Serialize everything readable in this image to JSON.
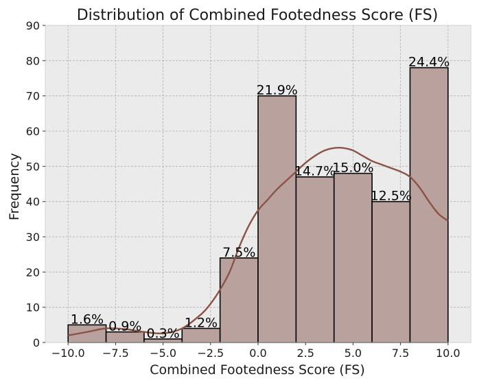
{
  "chart_data": {
    "type": "bar",
    "title": "Distribution of Combined Footedness Score (FS)",
    "xlabel": "Combined Footedness Score (FS)",
    "ylabel": "Frequency",
    "xlim": [
      -11.2,
      11.2
    ],
    "ylim": [
      0,
      90
    ],
    "xticks": [
      -10,
      -7.5,
      -5,
      -2.5,
      0,
      2.5,
      5,
      7.5,
      10
    ],
    "xtick_labels": [
      "−10.0",
      "−7.5",
      "−5.0",
      "−2.5",
      "0.0",
      "2.5",
      "5.0",
      "7.5",
      "10.0"
    ],
    "yticks": [
      0,
      10,
      20,
      30,
      40,
      50,
      60,
      70,
      80,
      90
    ],
    "ytick_labels": [
      "0",
      "10",
      "20",
      "30",
      "40",
      "50",
      "60",
      "70",
      "80",
      "90"
    ],
    "grid": true,
    "bins": [
      {
        "x0": -10,
        "x1": -8,
        "value": 5,
        "label": "1.6%"
      },
      {
        "x0": -8,
        "x1": -6,
        "value": 3,
        "label": "0.9%"
      },
      {
        "x0": -6,
        "x1": -4,
        "value": 1,
        "label": "0.3%"
      },
      {
        "x0": -4,
        "x1": -2,
        "value": 4,
        "label": "1.2%"
      },
      {
        "x0": -2,
        "x1": 0,
        "value": 24,
        "label": "7.5%"
      },
      {
        "x0": 0,
        "x1": 2,
        "value": 70,
        "label": "21.9%"
      },
      {
        "x0": 2,
        "x1": 4,
        "value": 47,
        "label": "14.7%"
      },
      {
        "x0": 4,
        "x1": 6,
        "value": 48,
        "label": "15.0%"
      },
      {
        "x0": 6,
        "x1": 8,
        "value": 40,
        "label": "12.5%"
      },
      {
        "x0": 8,
        "x1": 10,
        "value": 78,
        "label": "24.4%"
      }
    ],
    "kde": {
      "x": [
        -10,
        -9,
        -8,
        -7,
        -6,
        -5,
        -4,
        -3,
        -2.5,
        -2,
        -1.5,
        -1,
        -0.5,
        0,
        0.5,
        1,
        1.5,
        2,
        2.5,
        3,
        3.5,
        4,
        4.5,
        5,
        5.5,
        6,
        6.5,
        7,
        7.5,
        8,
        8.5,
        9,
        9.5,
        10
      ],
      "y": [
        2,
        3,
        4,
        3.8,
        3,
        2.6,
        4,
        8,
        11,
        15,
        20,
        27,
        33,
        37.5,
        40.5,
        43.5,
        46,
        48.5,
        51,
        53,
        54.5,
        55.2,
        55.2,
        54.5,
        53,
        51.5,
        50.5,
        49.5,
        48.5,
        47,
        44,
        40,
        36.5,
        34.5
      ]
    },
    "colors": {
      "bar_fill": "#b9a19e",
      "bar_edge": "#000000",
      "kde_line": "#8b5346",
      "plot_bg": "#ebebeb",
      "grid": "#b0b0b0"
    }
  }
}
